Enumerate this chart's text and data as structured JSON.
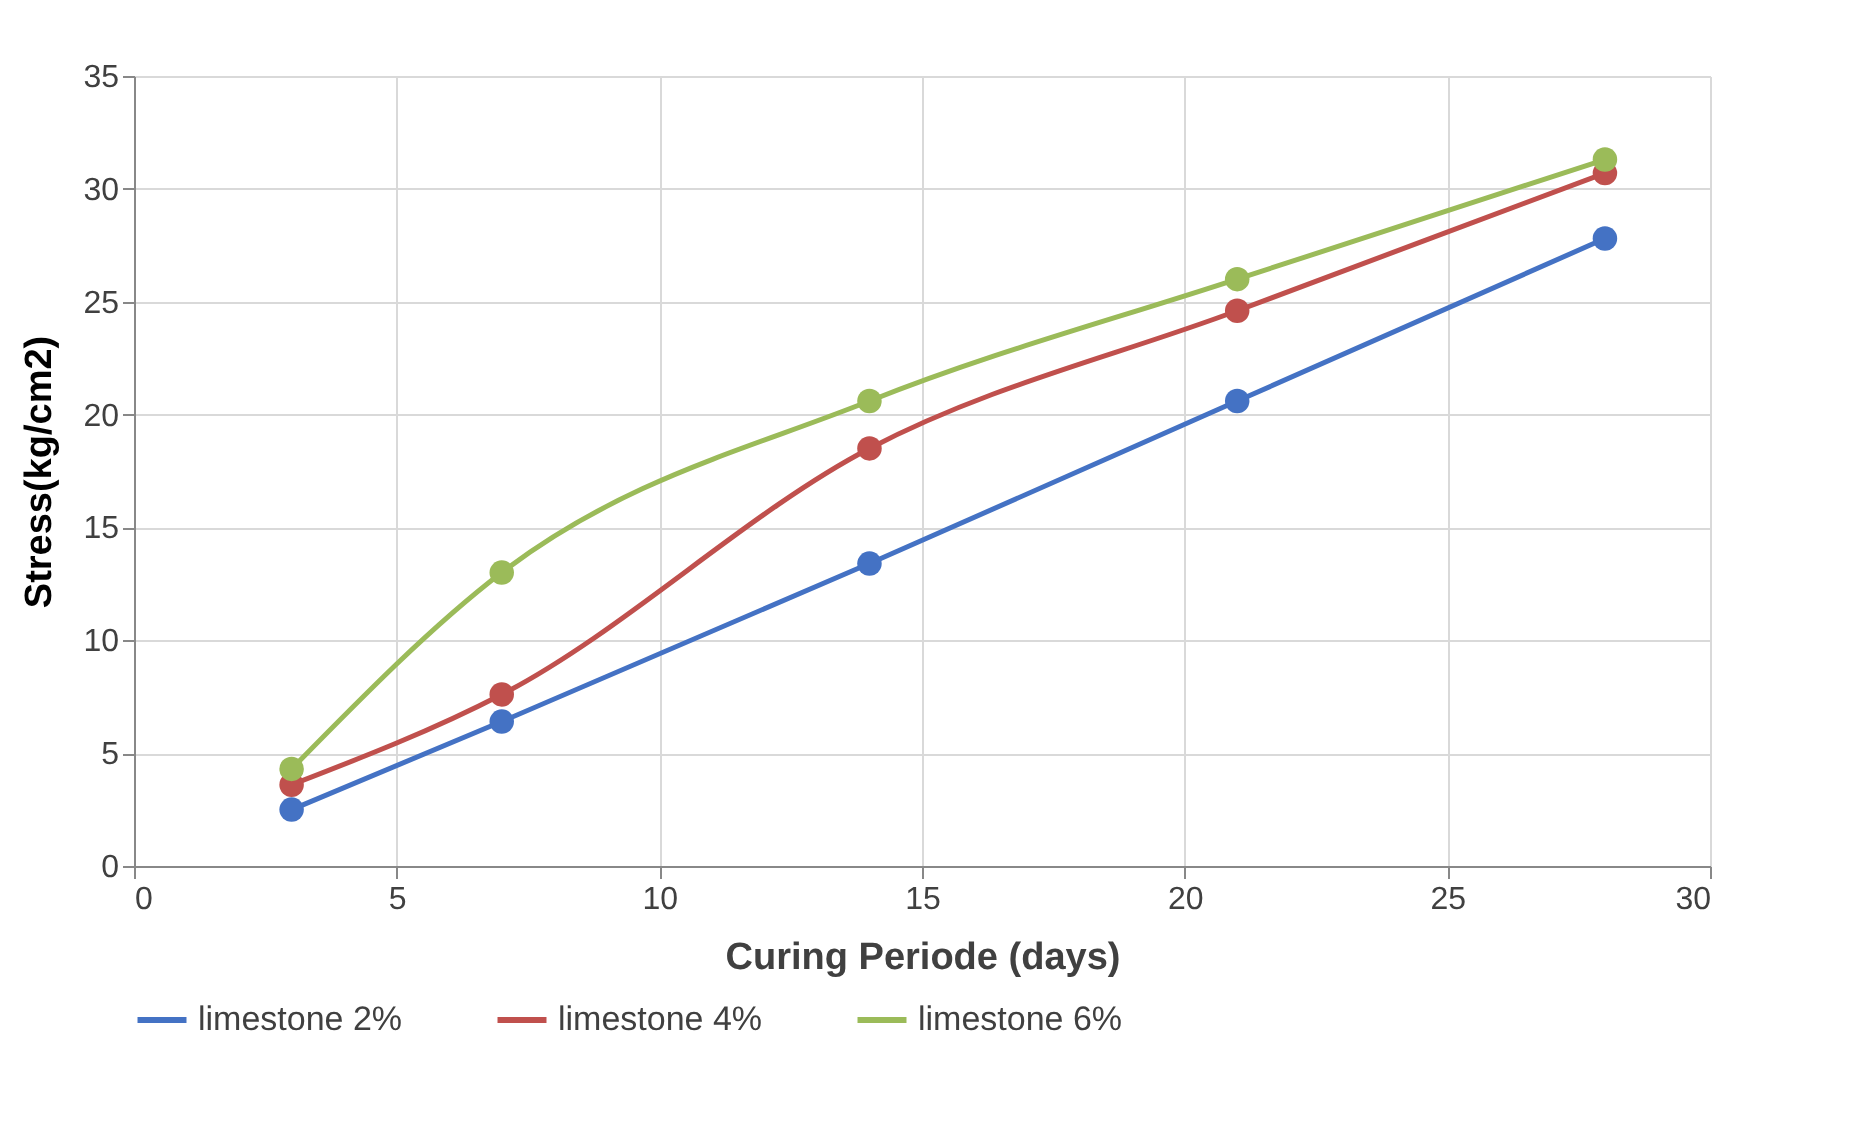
{
  "chart_data": {
    "type": "line",
    "xlabel": "Curing Periode (days)",
    "ylabel": "Stress(kg/cm2)",
    "x": [
      3,
      7,
      14,
      21,
      28
    ],
    "series": [
      {
        "name": "limestone 2%",
        "color": "#4472c4",
        "values": [
          2.5,
          6.4,
          13.4,
          20.6,
          27.8
        ]
      },
      {
        "name": "limestone 4%",
        "color": "#c0504d",
        "values": [
          3.6,
          7.6,
          18.5,
          24.6,
          30.7
        ]
      },
      {
        "name": "limestone 6%",
        "color": "#9bbb59",
        "values": [
          4.3,
          13.0,
          20.6,
          26.0,
          31.3
        ]
      }
    ],
    "xlim": [
      0,
      30
    ],
    "xticks": [
      0,
      5,
      10,
      15,
      20,
      25,
      30
    ],
    "ylim": [
      0,
      35
    ],
    "yticks": [
      0,
      5,
      10,
      15,
      20,
      25,
      30,
      35
    ],
    "grid": true,
    "legend": "bottom",
    "marker": "circle",
    "line_style": "solid"
  }
}
